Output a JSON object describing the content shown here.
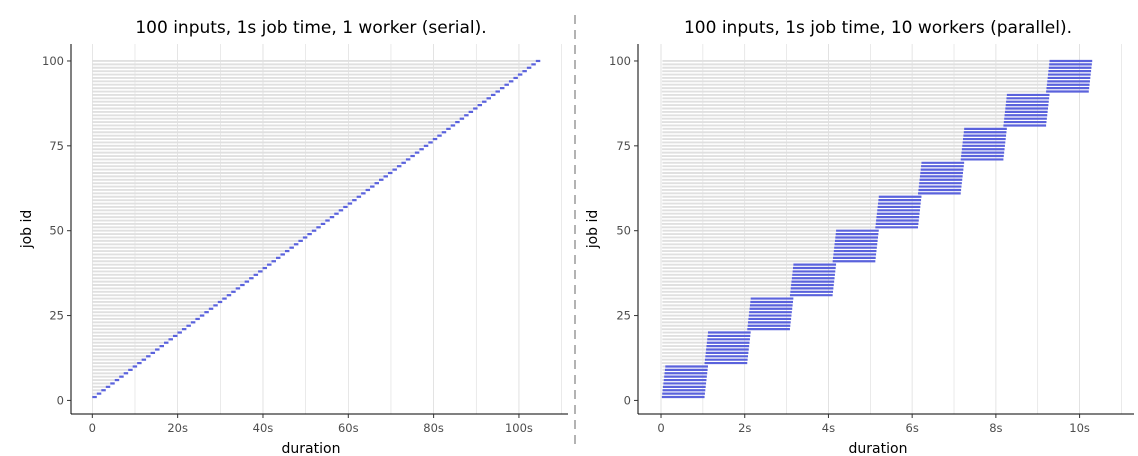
{
  "chart_data": [
    {
      "type": "bar",
      "title": "100 inputs, 1s job time, 1 worker (serial).",
      "xlabel": "duration",
      "ylabel": "job id",
      "xlim": [
        -5,
        111.5
      ],
      "ylim": [
        -4,
        105
      ],
      "x_ticks": [
        0,
        20,
        40,
        60,
        80,
        100
      ],
      "x_tick_labels": [
        "0",
        "20s",
        "40s",
        "60s",
        "80s",
        "100s"
      ],
      "y_ticks": [
        0,
        25,
        50,
        75,
        100
      ],
      "y_tick_labels": [
        "0",
        "25",
        "50",
        "75",
        "100"
      ],
      "workers": 1,
      "jobs": 100,
      "job_time_s": 1.05,
      "queue_start_s": 0,
      "queue_step_s": 0,
      "grid": true,
      "colors": {
        "job": "#5a62dc",
        "wait": "#e0e0e0",
        "grid": "#dcdcdc"
      }
    },
    {
      "type": "bar",
      "title": "100 inputs, 1s job time, 10 workers (parallel).",
      "xlabel": "duration",
      "ylabel": "job id",
      "xlim": [
        -0.55,
        11.3
      ],
      "ylim": [
        -4,
        105
      ],
      "x_ticks": [
        0,
        2,
        4,
        6,
        8,
        10
      ],
      "x_tick_labels": [
        "0",
        "2s",
        "4s",
        "6s",
        "8s",
        "10s"
      ],
      "y_ticks": [
        0,
        25,
        50,
        75,
        100
      ],
      "y_tick_labels": [
        "0",
        "25",
        "50",
        "75",
        "100"
      ],
      "workers": 10,
      "jobs": 100,
      "job_time_s": 1.02,
      "queue_start_s": 0.02,
      "queue_step_s": 0.0016,
      "grid": true,
      "colors": {
        "job": "#5a62dc",
        "wait": "#e0e0e0",
        "grid": "#dcdcdc"
      }
    }
  ],
  "colors": {
    "divider": "#9a9a9a"
  }
}
